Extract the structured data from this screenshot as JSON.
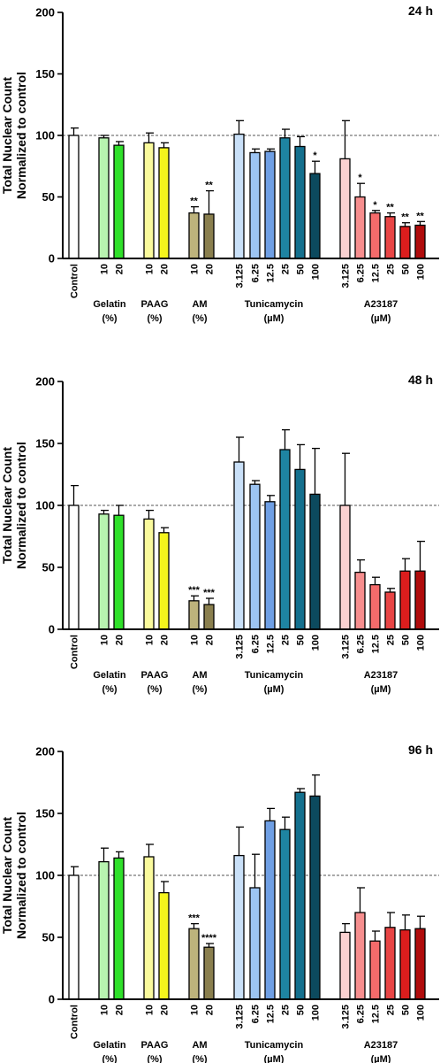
{
  "chart_data": [
    {
      "type": "bar",
      "title": "24 h",
      "ylabel": [
        "Total Nuclear Count",
        "Normalized to control"
      ],
      "ylim": [
        0,
        200
      ],
      "yticks": [
        0,
        50,
        100,
        150,
        200
      ],
      "reference_line": 100,
      "categories": [
        "Control",
        "10",
        "20",
        "10",
        "20",
        "10",
        "20",
        "3.125",
        "6.25",
        "12.5",
        "25",
        "50",
        "100",
        "3.125",
        "6.25",
        "12.5",
        "25",
        "50",
        "100"
      ],
      "values": [
        100,
        98,
        92,
        94,
        90,
        37,
        36,
        101,
        86,
        87,
        98,
        91,
        69,
        81,
        50,
        37,
        34,
        26,
        27
      ],
      "errors": [
        6,
        2,
        3,
        8,
        4,
        5,
        19,
        11,
        3,
        2,
        7,
        8,
        10,
        31,
        11,
        2,
        3,
        3,
        3
      ],
      "significance": [
        "",
        "",
        "",
        "",
        "",
        "**",
        "**",
        "",
        "",
        "",
        "",
        "",
        "*",
        "",
        "*",
        "*",
        "**",
        "**",
        "**"
      ],
      "groups": [
        [
          "Gelatin",
          "(%)"
        ],
        [
          "PAAG",
          "(%)"
        ],
        [
          "AM",
          "(%)"
        ],
        [
          "Tunicamycin",
          "(µM)"
        ],
        [
          "A23187",
          "(µM)"
        ]
      ]
    },
    {
      "type": "bar",
      "title": "48 h",
      "ylabel": [
        "Total Nuclear Count",
        "Normalized to control"
      ],
      "ylim": [
        0,
        200
      ],
      "yticks": [
        0,
        50,
        100,
        150,
        200
      ],
      "reference_line": 100,
      "categories": [
        "Control",
        "10",
        "20",
        "10",
        "20",
        "10",
        "20",
        "3.125",
        "6.25",
        "12.5",
        "25",
        "50",
        "100",
        "3.125",
        "6.25",
        "12.5",
        "25",
        "50",
        "100"
      ],
      "values": [
        100,
        93,
        92,
        89,
        78,
        23,
        20,
        135,
        117,
        103,
        145,
        129,
        109,
        100,
        46,
        36,
        30,
        47,
        47
      ],
      "errors": [
        16,
        3,
        8,
        7,
        4,
        4,
        5,
        20,
        3,
        5,
        16,
        20,
        37,
        42,
        10,
        6,
        3,
        10,
        24
      ],
      "significance": [
        "",
        "",
        "",
        "",
        "",
        "***",
        "***",
        "",
        "",
        "",
        "",
        "",
        "",
        "",
        "",
        "",
        "",
        "",
        ""
      ],
      "groups": [
        [
          "Gelatin",
          "(%)"
        ],
        [
          "PAAG",
          "(%)"
        ],
        [
          "AM",
          "(%)"
        ],
        [
          "Tunicamycin",
          "(µM)"
        ],
        [
          "A23187",
          "(µM)"
        ]
      ]
    },
    {
      "type": "bar",
      "title": "96 h",
      "ylabel": [
        "Total Nuclear Count",
        "Normalized to control"
      ],
      "ylim": [
        0,
        200
      ],
      "yticks": [
        0,
        50,
        100,
        150,
        200
      ],
      "reference_line": 100,
      "categories": [
        "Control",
        "10",
        "20",
        "10",
        "20",
        "10",
        "20",
        "3.125",
        "6.25",
        "12.5",
        "25",
        "50",
        "100",
        "3.125",
        "6.25",
        "12.5",
        "25",
        "50",
        "100"
      ],
      "values": [
        100,
        111,
        114,
        115,
        86,
        57,
        42,
        116,
        90,
        144,
        137,
        167,
        164,
        54,
        70,
        47,
        58,
        56,
        57
      ],
      "errors": [
        7,
        11,
        5,
        10,
        9,
        4,
        3,
        23,
        27,
        10,
        10,
        3,
        17,
        7,
        20,
        8,
        12,
        12,
        10
      ],
      "significance": [
        "",
        "",
        "",
        "",
        "",
        "***",
        "****",
        "",
        "",
        "",
        "",
        "",
        "",
        "",
        "",
        "",
        "",
        "",
        ""
      ],
      "groups": [
        [
          "Gelatin",
          "(%)"
        ],
        [
          "PAAG",
          "(%)"
        ],
        [
          "AM",
          "(%)"
        ],
        [
          "Tunicamycin",
          "(µM)"
        ],
        [
          "A23187",
          "(µM)"
        ]
      ]
    }
  ],
  "colors": {
    "fills": [
      "#ffffff",
      "#b8f4b0",
      "#2fe02a",
      "#fafa9c",
      "#f5f51c",
      "#bdb37c",
      "#8a7f4e",
      "#c9e0f8",
      "#9cc4f2",
      "#6f9fe4",
      "#1e84a2",
      "#14708e",
      "#0c4a5e",
      "#fbd1d1",
      "#f68e8e",
      "#f56b6b",
      "#e84545",
      "#dc1d1d",
      "#b00c0c"
    ],
    "axis": "#000000",
    "reference_line": "#555555"
  }
}
